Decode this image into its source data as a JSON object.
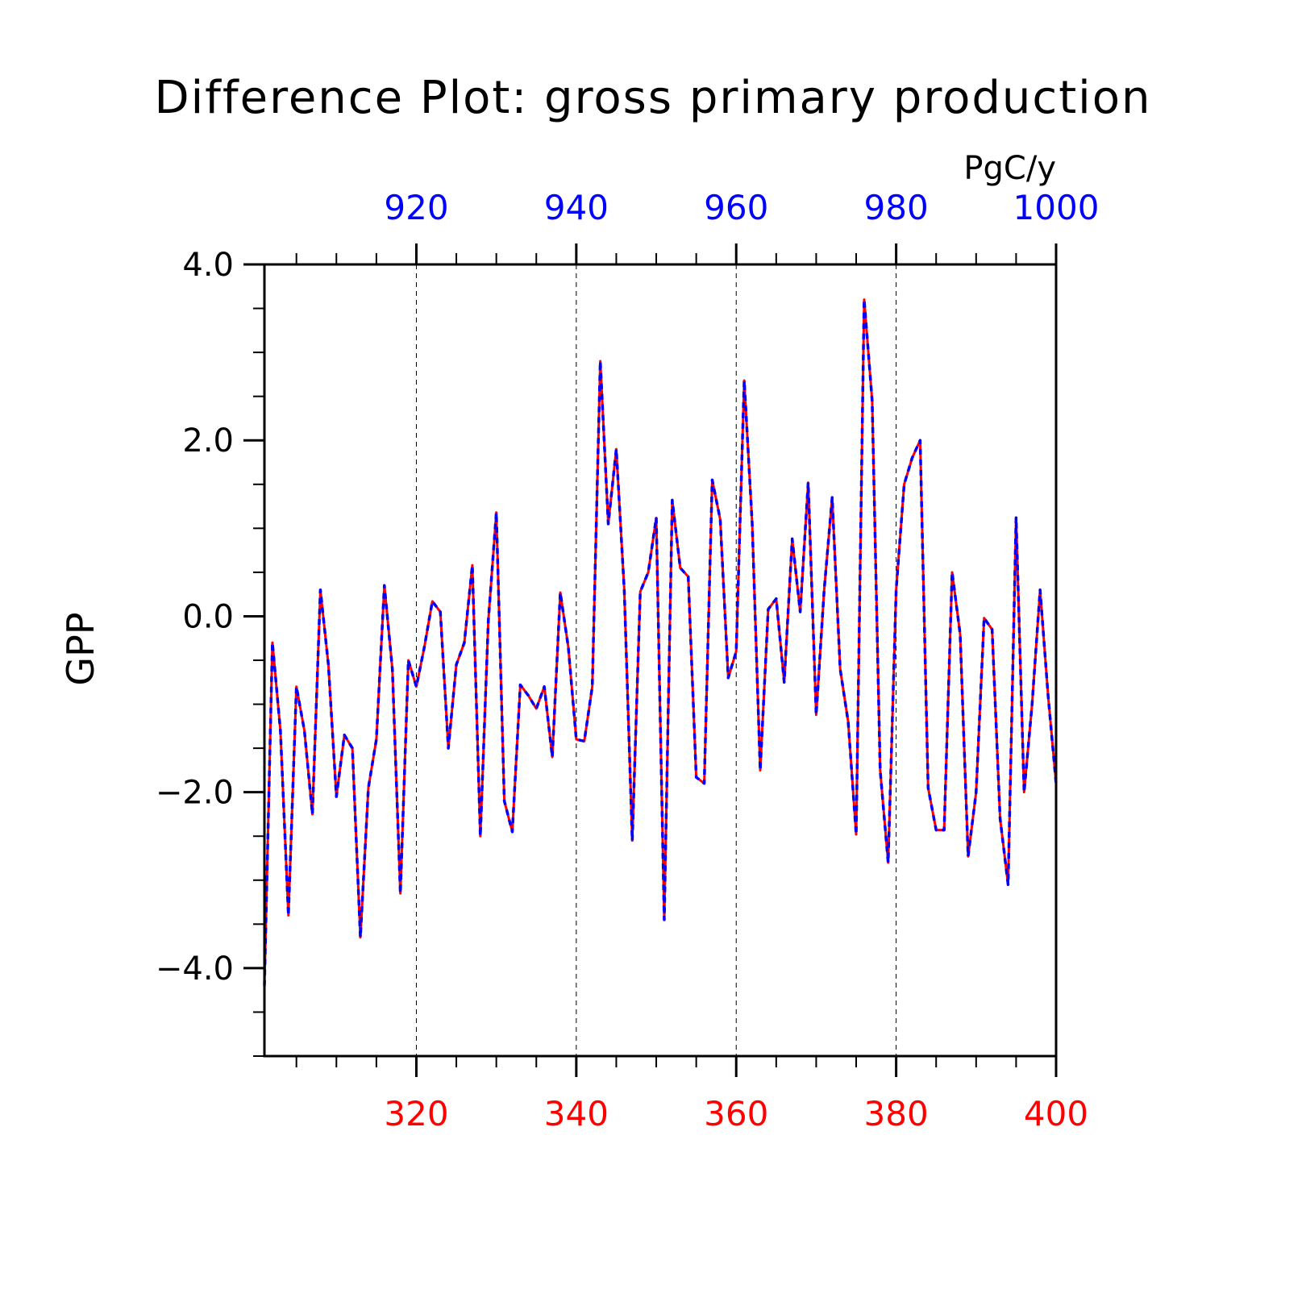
{
  "chart_data": {
    "type": "line",
    "title": "Difference Plot: gross primary production",
    "units": "PgC/y",
    "ylabel": "GPP",
    "ylim": [
      -5,
      4
    ],
    "yticks": [
      "4.0",
      "2.0",
      "0.0",
      "−2.0",
      "−4.0"
    ],
    "y_tick_values": [
      4,
      2,
      0,
      -2,
      -4
    ],
    "bottom_axis": {
      "range": [
        301,
        400
      ],
      "ticks": [
        "320",
        "340",
        "360",
        "380",
        "400"
      ],
      "tick_values": [
        320,
        340,
        360,
        380,
        400
      ],
      "color": "#ff0000"
    },
    "top_axis": {
      "range": [
        901,
        1000
      ],
      "ticks": [
        "920",
        "940",
        "960",
        "980",
        "1000"
      ],
      "tick_values": [
        920,
        940,
        960,
        980,
        1000
      ],
      "color": "#0000ff"
    },
    "grid": "dashed vertical lines at major x ticks",
    "series": [
      {
        "color": "#ff0000",
        "style": "solid",
        "axis": "bottom"
      },
      {
        "color": "#0000ff",
        "style": "dashed",
        "axis": "top"
      }
    ],
    "x": [
      301,
      302,
      303,
      304,
      305,
      306,
      307,
      308,
      309,
      310,
      311,
      312,
      313,
      314,
      315,
      316,
      317,
      318,
      319,
      320,
      321,
      322,
      323,
      324,
      325,
      326,
      327,
      328,
      329,
      330,
      331,
      332,
      333,
      334,
      335,
      336,
      337,
      338,
      339,
      340,
      341,
      342,
      343,
      344,
      345,
      346,
      347,
      348,
      349,
      350,
      351,
      352,
      353,
      354,
      355,
      356,
      357,
      358,
      359,
      360,
      361,
      362,
      363,
      364,
      365,
      366,
      367,
      368,
      369,
      370,
      371,
      372,
      373,
      374,
      375,
      376,
      377,
      378,
      379,
      380,
      381,
      382,
      383,
      384,
      385,
      386,
      387,
      388,
      389,
      390,
      391,
      392,
      393,
      394,
      395,
      396,
      397,
      398,
      399,
      400
    ],
    "values": [
      -4.2,
      -0.3,
      -1.3,
      -3.4,
      -0.8,
      -1.3,
      -2.25,
      0.3,
      -0.55,
      -2.05,
      -1.35,
      -1.5,
      -3.65,
      -1.95,
      -1.4,
      0.35,
      -0.6,
      -3.15,
      -0.5,
      -0.8,
      -0.35,
      0.17,
      0.05,
      -1.5,
      -0.55,
      -0.3,
      0.58,
      -2.5,
      -0.05,
      1.18,
      -2.1,
      -2.45,
      -0.78,
      -0.9,
      -1.05,
      -0.8,
      -1.6,
      0.27,
      -0.35,
      -1.4,
      -1.42,
      -0.8,
      2.9,
      1.05,
      1.9,
      0.3,
      -2.55,
      0.28,
      0.5,
      1.12,
      -3.45,
      1.32,
      0.55,
      0.45,
      -1.83,
      -1.9,
      1.55,
      1.1,
      -0.7,
      -0.4,
      2.68,
      1.05,
      -1.75,
      0.08,
      0.2,
      -0.75,
      0.88,
      0.05,
      1.52,
      -1.12,
      0.3,
      1.35,
      -0.6,
      -1.2,
      -2.48,
      3.6,
      2.45,
      -1.75,
      -2.8,
      0.3,
      1.5,
      1.8,
      2.0,
      -1.95,
      -2.43,
      -2.43,
      0.5,
      -0.2,
      -2.73,
      -2.0,
      -0.02,
      -0.15,
      -2.3,
      -3.05,
      1.12,
      -2.0,
      -1.0,
      0.3,
      -0.9,
      -1.9
    ]
  }
}
